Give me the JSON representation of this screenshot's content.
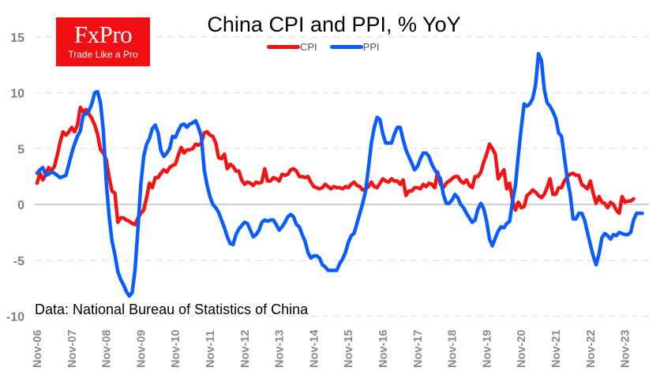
{
  "brand": {
    "name": "FxPro",
    "tagline": "Trade Like a Pro",
    "color": "#f10f14"
  },
  "chart_data": {
    "type": "line",
    "title": "China CPI and PPI, % YoY",
    "source_note": "Data: National Bureau of Statistics of China",
    "xlabel": "",
    "ylabel": "",
    "ylim": [
      -10,
      15
    ],
    "yticks": [
      15,
      10,
      5,
      0,
      -5,
      -10
    ],
    "grid": true,
    "legend_position": "top-center",
    "x_start": "Nov-06",
    "x_step": "month",
    "xtick_labels": [
      "Nov-06",
      "Nov-07",
      "Nov-08",
      "Nov-09",
      "Nov-10",
      "Nov-11",
      "Nov-12",
      "Nov-13",
      "Nov-14",
      "Nov-15",
      "Nov-16",
      "Nov-17",
      "Nov-18",
      "Nov-19",
      "Nov-20",
      "Nov-21",
      "Nov-22",
      "Nov-23"
    ],
    "series": [
      {
        "name": "CPI",
        "color": "#f01414",
        "values": [
          1.9,
          2.8,
          2.2,
          2.7,
          3.3,
          3.0,
          3.4,
          4.4,
          5.6,
          6.5,
          6.2,
          6.5,
          6.9,
          6.5,
          7.1,
          8.7,
          8.3,
          8.5,
          8.1,
          7.7,
          7.1,
          6.3,
          4.9,
          4.6,
          4.0,
          2.4,
          1.2,
          1.0,
          -1.6,
          -1.2,
          -1.2,
          -1.4,
          -1.5,
          -1.7,
          -1.8,
          -1.2,
          -0.8,
          -0.5,
          0.6,
          1.9,
          1.5,
          2.4,
          2.4,
          2.8,
          3.1,
          2.9,
          3.3,
          3.5,
          3.6,
          4.4,
          5.1,
          4.6,
          4.9,
          4.9,
          5.0,
          5.4,
          5.3,
          5.5,
          6.4,
          6.5,
          6.2,
          6.1,
          5.5,
          4.2,
          4.1,
          4.5,
          3.2,
          3.6,
          3.4,
          3.0,
          3.0,
          2.2,
          1.8,
          2.0,
          1.9,
          1.7,
          2.0,
          1.9,
          2.0,
          3.2,
          2.1,
          2.1,
          2.4,
          2.3,
          2.1,
          2.7,
          2.6,
          2.7,
          3.1,
          3.2,
          3.0,
          2.5,
          2.5,
          2.4,
          2.5,
          2.0,
          1.6,
          1.5,
          1.4,
          1.5,
          1.8,
          1.6,
          1.4,
          1.6,
          1.5,
          1.5,
          1.4,
          1.6,
          1.5,
          1.8,
          2.0,
          1.7,
          1.6,
          1.3,
          1.4,
          1.6,
          2.0,
          1.6,
          1.5,
          1.9,
          2.3,
          2.1,
          2.0,
          2.3,
          2.1,
          2.1,
          1.8,
          2.2,
          0.8,
          1.2,
          1.2,
          1.5,
          1.5,
          1.4,
          1.8,
          1.6,
          1.9,
          1.8,
          1.5,
          2.9,
          1.8,
          1.5,
          1.9,
          2.1,
          2.3,
          2.5,
          2.5,
          2.1,
          1.9,
          2.2,
          1.7,
          1.5,
          2.5,
          2.5,
          2.9,
          3.8,
          4.5,
          5.4,
          5.0,
          4.5,
          2.3,
          2.7,
          3.1,
          1.4,
          1.9,
          0.3,
          -0.5,
          0.2,
          -0.3,
          -0.2,
          0.8,
          1.0,
          1.3,
          1.1,
          0.8,
          0.6,
          0.9,
          1.5,
          2.3,
          0.9,
          0.9,
          1.5,
          1.5,
          2.1,
          2.5,
          2.7,
          2.8,
          2.6,
          2.6,
          1.8,
          1.6,
          1.4,
          2.1,
          1.0,
          0.1,
          0.7,
          0.2,
          0.1,
          -0.3,
          0.2,
          0,
          -0.5,
          -0.8,
          0.7,
          0.2,
          0.3,
          0.3,
          0.5
        ],
        "values_precision": "approximate, read from chart"
      },
      {
        "name": "PPI",
        "color": "#0a5cff",
        "values": [
          2.8,
          3.1,
          3.3,
          2.6,
          2.7,
          2.9,
          2.8,
          2.6,
          2.4,
          2.5,
          2.6,
          3.6,
          4.6,
          5.4,
          6.1,
          6.6,
          8.0,
          8.1,
          8.4,
          9.0,
          10.0,
          10.1,
          9.1,
          6.6,
          2.0,
          -1.1,
          -3.3,
          -4.5,
          -6.0,
          -6.7,
          -7.2,
          -7.8,
          -8.2,
          -7.9,
          -5.8,
          -2.1,
          1.8,
          4.3,
          5.4,
          5.9,
          6.8,
          7.1,
          6.4,
          4.8,
          4.3,
          4.6,
          5.0,
          6.1,
          6.0,
          6.6,
          7.1,
          7.2,
          6.9,
          7.2,
          7.3,
          7.5,
          6.9,
          6.1,
          3.1,
          1.7,
          0.7,
          0.0,
          -0.3,
          -0.7,
          -1.4,
          -2.1,
          -2.9,
          -3.5,
          -3.6,
          -2.7,
          -2.2,
          -1.9,
          -1.6,
          -1.7,
          -2.3,
          -2.9,
          -2.7,
          -2.3,
          -1.6,
          -1.4,
          -1.5,
          -1.4,
          -1.4,
          -1.8,
          -2.3,
          -2.0,
          -1.6,
          -1.1,
          -0.9,
          -1.1,
          -1.8,
          -2.0,
          -2.7,
          -3.3,
          -4.3,
          -4.8,
          -4.6,
          -4.6,
          -4.8,
          -5.4,
          -5.6,
          -5.9,
          -5.9,
          -5.9,
          -5.9,
          -5.3,
          -4.9,
          -4.3,
          -3.4,
          -2.8,
          -2.6,
          -1.7,
          -0.8,
          0.1,
          1.2,
          3.3,
          5.5,
          6.9,
          7.8,
          7.6,
          6.3,
          5.5,
          5.5,
          5.5,
          6.3,
          6.9,
          6.9,
          5.8,
          4.9,
          4.3,
          3.7,
          3.1,
          3.4,
          4.1,
          4.6,
          4.6,
          4.3,
          3.6,
          3.1,
          2.7,
          2.3,
          0.9,
          0.1,
          0.1,
          0.4,
          0.9,
          0.6,
          0.0,
          -0.3,
          -0.8,
          -1.2,
          -1.6,
          -1.4,
          -0.4,
          0.1,
          -0.4,
          -1.5,
          -3.1,
          -3.7,
          -3.0,
          -2.4,
          -2.0,
          -2.1,
          -1.7,
          -1.5,
          0.3,
          1.7,
          4.4,
          6.8,
          9.0,
          8.8,
          9.0,
          9.5,
          10.7,
          13.5,
          12.9,
          10.3,
          9.1,
          8.8,
          8.3,
          7.7,
          6.4,
          6.1,
          4.2,
          2.3,
          0.9,
          -1.3,
          -1.3,
          -0.8,
          -0.8,
          -1.4,
          -2.5,
          -3.6,
          -4.6,
          -5.4,
          -4.4,
          -3.0,
          -2.6,
          -2.8,
          -3.1,
          -2.7,
          -2.8,
          -2.5,
          -2.6,
          -2.7,
          -2.7,
          -2.5,
          -1.4,
          -0.8,
          -0.8,
          -0.8
        ]
      }
    ]
  }
}
